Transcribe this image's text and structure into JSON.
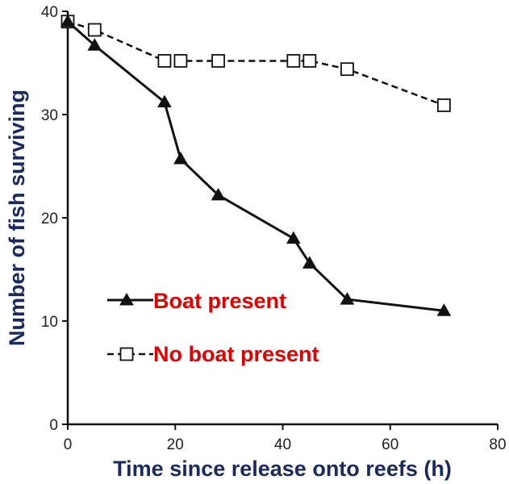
{
  "chart_data": {
    "type": "line",
    "xlabel": "Time since release onto reefs (h)",
    "ylabel": "Number of fish surviving",
    "xlim": [
      0,
      80
    ],
    "ylim": [
      0,
      40
    ],
    "xticks": [
      0,
      20,
      40,
      60,
      80
    ],
    "yticks": [
      0,
      10,
      20,
      30,
      40
    ],
    "grid": false,
    "legend_position": "lower-left",
    "axis_title_color": "#1a2a5e",
    "legend_text_color": "#e00000",
    "series": [
      {
        "name": "Boat present",
        "style": "solid",
        "marker": "filled-triangle",
        "color": "#111111",
        "points": [
          [
            0,
            39
          ],
          [
            5,
            36.7
          ],
          [
            18,
            31.2
          ],
          [
            21,
            25.7
          ],
          [
            28,
            22.2
          ],
          [
            42,
            18
          ],
          [
            45,
            15.6
          ],
          [
            52,
            12.1
          ],
          [
            70,
            11
          ]
        ]
      },
      {
        "name": "No boat present",
        "style": "dashed",
        "marker": "open-square",
        "color": "#111111",
        "points": [
          [
            0,
            39
          ],
          [
            5,
            38.2
          ],
          [
            18,
            35.2
          ],
          [
            21,
            35.2
          ],
          [
            28,
            35.2
          ],
          [
            42,
            35.2
          ],
          [
            45,
            35.2
          ],
          [
            52,
            34.4
          ],
          [
            70,
            30.9
          ]
        ]
      }
    ]
  }
}
